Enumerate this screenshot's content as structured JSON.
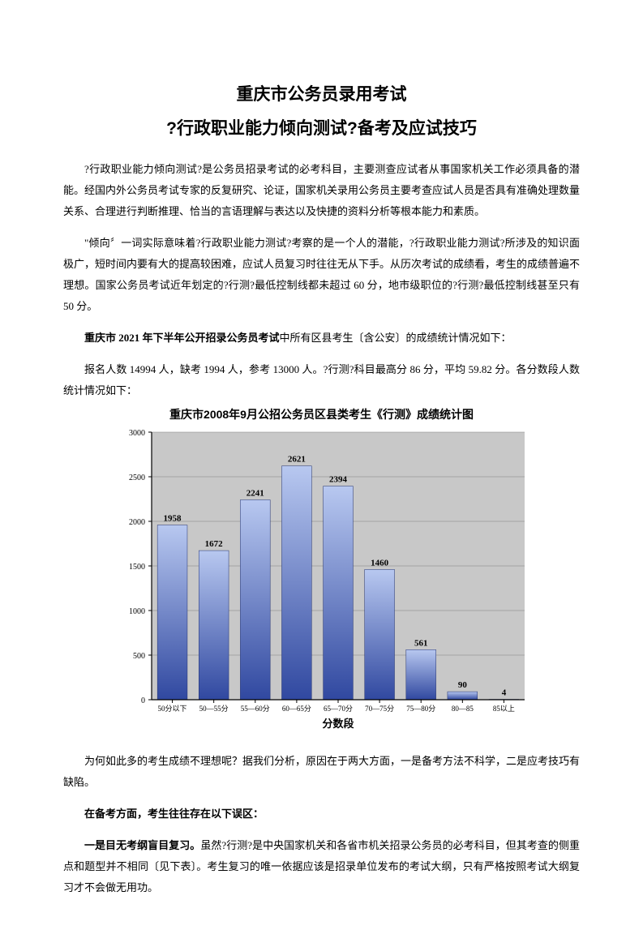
{
  "title_line1": "重庆市公务员录用考试",
  "title_line2": "?行政职业能力倾向测试?备考及应试技巧",
  "para1": "?行政职业能力倾向测试?是公务员招录考试的必考科目，主要测查应试者从事国家机关工作必须具备的潜能。经国内外公务员考试专家的反复研究、论证，国家机关录用公务员主要考查应试人员是否具有准确处理数量关系、合理进行判断推理、恰当的言语理解与表达以及快捷的资料分析等根本能力和素质。",
  "para2": "\"倾向〞一词实际意味着?行政职业能力测试?考察的是一个人的潜能，?行政职业能力测试?所涉及的知识面极广，短时间内要有大的提高较困难，应试人员复习时往往无从下手。从历次考试的成绩看，考生的成绩普遍不理想。国家公务员考试近年划定的?行测?最低控制线都未超过 60 分，地市级职位的?行测?最低控制线甚至只有 50 分。",
  "para3_bold": "重庆市 2021 年下半年公开招录公务员考试",
  "para3_rest": "中所有区县考生〔含公安〕的成绩统计情况如下：",
  "para4": "报名人数 14994 人，缺考 1994 人，参考 13000 人。?行测?科目最高分 86 分，平均 59.82 分。各分数段人数统计情况如下：",
  "para5": "为何如此多的考生成绩不理想呢？据我们分析，原因在于两大方面，一是备考方法不科学，二是应考技巧有缺陷。",
  "para6": "在备考方面，考生往往存在以下误区：",
  "para7_bold": "一是目无考纲盲目复习。",
  "para7_rest": "虽然?行测?是中央国家机关和各省市机关招录公务员的必考科目，但其考查的侧重点和题型并不相同〔见下表〕。考生复习的唯一依据应该是招录单位发布的考试大纲，只有严格按照考试大纲复习才不会做无用功。",
  "chart": {
    "title": "重庆市2008年9月公招公务员区县类考生《行测》成绩统计图",
    "categories": [
      "50分以下",
      "50—55分",
      "55—60分",
      "60—65分",
      "65—70分",
      "70—75分",
      "75—80分",
      "80—85",
      "85以上"
    ],
    "values": [
      1958,
      1672,
      2241,
      2621,
      2394,
      1460,
      561,
      90,
      4
    ],
    "bar_color_top": "#b8c8f0",
    "bar_color_bottom": "#3048a0",
    "plot_bg": "#c8c8c8",
    "grid_color": "#808080",
    "axis_color": "#000000",
    "label_color": "#000000",
    "ylim": [
      0,
      3000
    ],
    "ytick_step": 500,
    "xlabel": "分数段",
    "label_fontsize": 10,
    "title_fontsize": 14,
    "bar_width": 0.72
  }
}
